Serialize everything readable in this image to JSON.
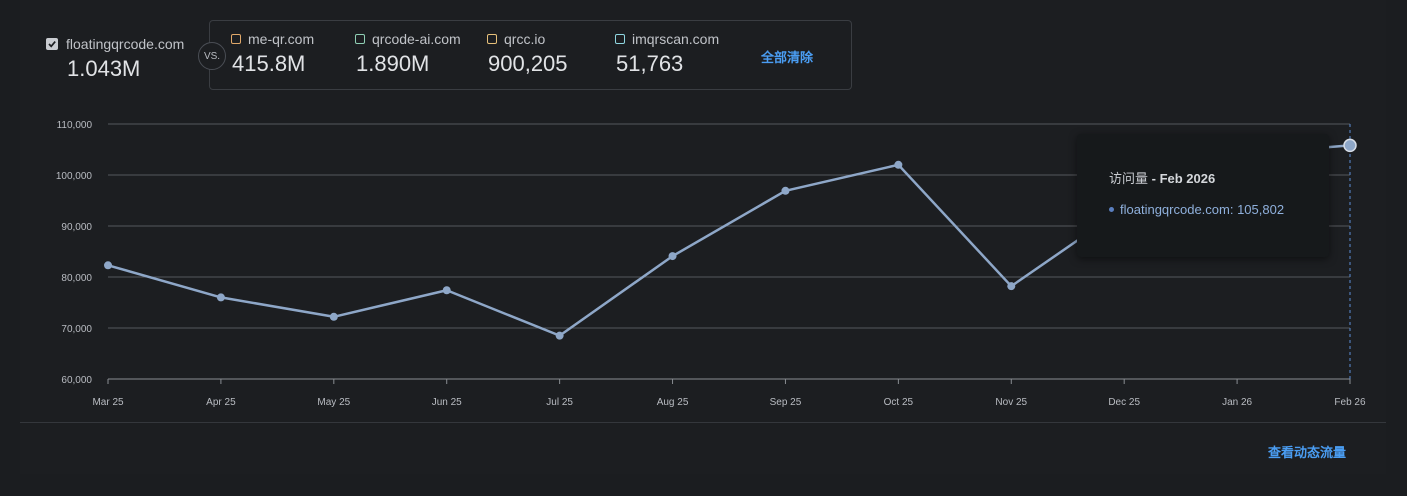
{
  "main_site": {
    "name": "floatingqrcode.com",
    "value": "1.043M",
    "checked": true
  },
  "vs_label": "VS.",
  "competitors": [
    {
      "name": "me-qr.com",
      "value": "415.8M",
      "color": "#e0a86a"
    },
    {
      "name": "qrcode-ai.com",
      "value": "1.890M",
      "color": "#8fcfb4"
    },
    {
      "name": "qrcc.io",
      "value": "900,205",
      "color": "#e6c07a"
    },
    {
      "name": "imqrscan.com",
      "value": "51,763",
      "color": "#8fd6e0"
    }
  ],
  "clear_all_label": "全部清除",
  "view_traffic_label": "查看动态流量",
  "tooltip": {
    "metric": "访问量",
    "period": "Feb 2026",
    "site": "floatingqrcode.com",
    "value": "105,802"
  },
  "chart_data": {
    "type": "line",
    "categories": [
      "Mar 25",
      "Apr 25",
      "May 25",
      "Jun 25",
      "Jul 25",
      "Aug 25",
      "Sep 25",
      "Oct 25",
      "Nov 25",
      "Dec 25",
      "Jan 26",
      "Feb 26"
    ],
    "series": [
      {
        "name": "floatingqrcode.com",
        "color": "#8ea7c8",
        "values": [
          82300,
          76000,
          72200,
          77400,
          68500,
          84100,
          96900,
          102000,
          78200,
          93500,
          104000,
          105802
        ]
      }
    ],
    "yticks": [
      60000,
      70000,
      80000,
      90000,
      100000,
      110000
    ],
    "ytick_labels": [
      "60,000",
      "70,000",
      "80,000",
      "90,000",
      "100,000",
      "110,000"
    ],
    "ylim": [
      60000,
      110000
    ],
    "grid": true,
    "highlighted_category": "Feb 26"
  }
}
